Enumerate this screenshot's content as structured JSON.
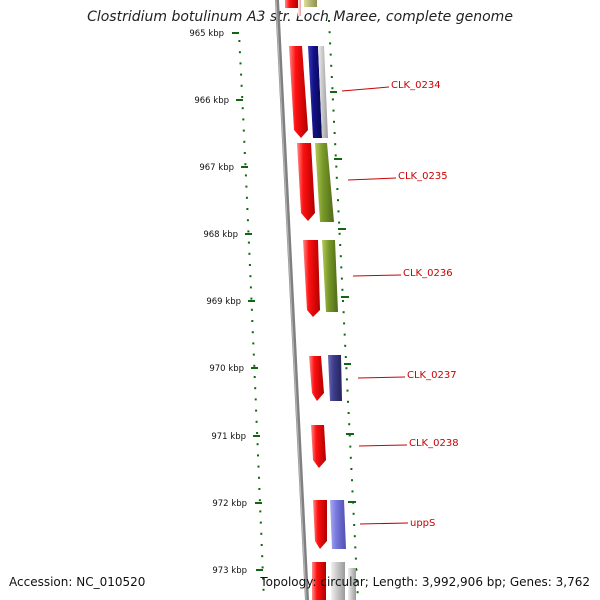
{
  "title": "Clostridium botulinum A3 str. Loch Maree, complete genome",
  "footer": {
    "accession": "Accession: NC_010520",
    "summary": "Topology: circular; Length: 3,992,906 bp; Genes: 3,762"
  },
  "ruler": {
    "ticks": [
      "965 kbp",
      "966 kbp",
      "967 kbp",
      "968 kbp",
      "969 kbp",
      "970 kbp",
      "971 kbp",
      "972 kbp",
      "973 kbp"
    ]
  },
  "genes": [
    {
      "label": "CLK_0234"
    },
    {
      "label": "CLK_0235"
    },
    {
      "label": "CLK_0236"
    },
    {
      "label": "CLK_0237"
    },
    {
      "label": "CLK_0238"
    },
    {
      "label": "uppS"
    }
  ],
  "colors": {
    "background": "#ffffff",
    "backbone": "#808080",
    "cds_forward": "#ee0000",
    "tick": "#116611",
    "label": "#cc0000",
    "olive": "#7a9a2a",
    "navy": "#121288",
    "slate_blue": "#3c3c8c",
    "periwinkle": "#7777dd",
    "light_gray": "#cccccc",
    "khaki": "#bdbd7a",
    "pink": "#ffcccc"
  }
}
